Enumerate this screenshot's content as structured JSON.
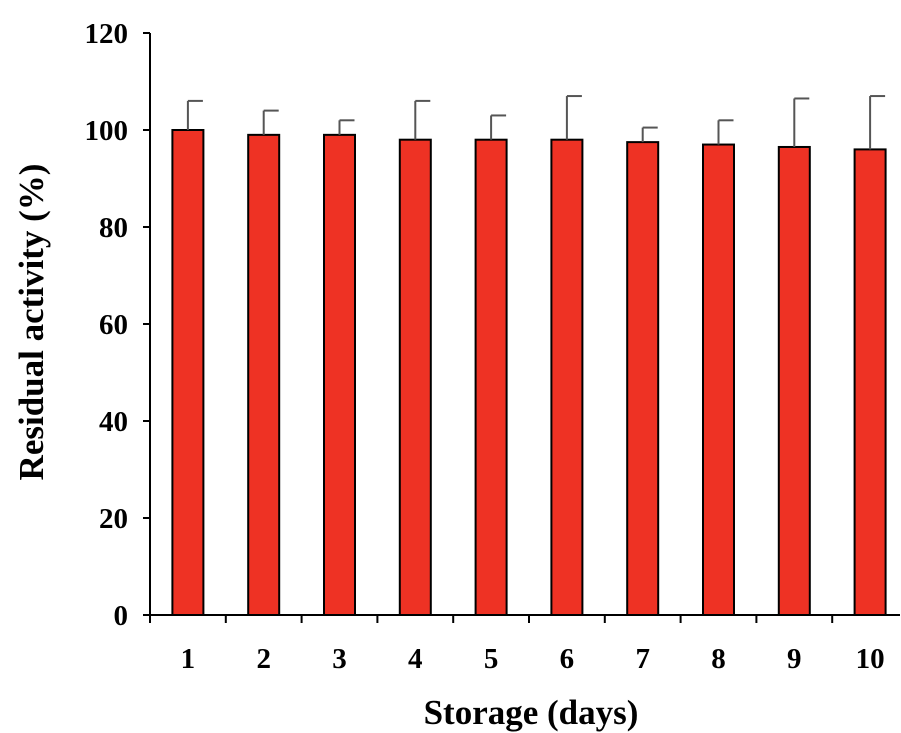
{
  "chart_data": {
    "type": "bar",
    "title": "",
    "xlabel": "Storage (days)",
    "ylabel": "Residual activity (%)",
    "categories": [
      "1",
      "2",
      "3",
      "4",
      "5",
      "6",
      "7",
      "8",
      "9",
      "10"
    ],
    "values": [
      100,
      99,
      99,
      98,
      98,
      98,
      97.5,
      97,
      96.5,
      96
    ],
    "error_bars": [
      6,
      5,
      3,
      8,
      5,
      9,
      3,
      5,
      10,
      11
    ],
    "ylim": [
      0,
      120
    ],
    "yticks": [
      "0",
      "20",
      "40",
      "60",
      "80",
      "100",
      "120"
    ],
    "grid": false,
    "legend": "none",
    "colors": {
      "bar_fill": "#ee3224",
      "bar_stroke": "#000000",
      "error_bar": "#555555",
      "axis": "#000000"
    }
  }
}
